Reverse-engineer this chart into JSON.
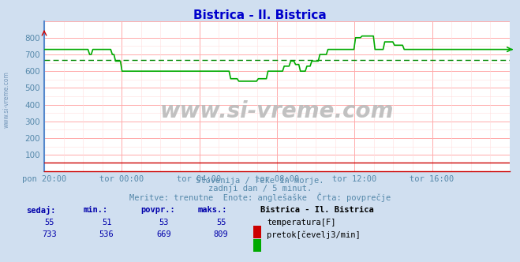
{
  "title": "Bistrica - Il. Bistrica",
  "title_color": "#0000cc",
  "bg_color": "#d0dff0",
  "plot_bg_color": "#ffffff",
  "grid_color_major": "#ffaaaa",
  "grid_color_minor": "#ffdddd",
  "x_labels": [
    "pon 20:00",
    "tor 00:00",
    "tor 04:00",
    "tor 08:00",
    "tor 12:00",
    "tor 16:00"
  ],
  "ylim": [
    0,
    900
  ],
  "yticks": [
    100,
    200,
    300,
    400,
    500,
    600,
    700,
    800
  ],
  "temp_color": "#cc0000",
  "flow_color": "#00aa00",
  "avg_color": "#008800",
  "temp_avg": 53,
  "flow_avg": 669,
  "flow_current": 733,
  "watermark": "www.si-vreme.com",
  "sub_text1": "Slovenija / reke in morje.",
  "sub_text2": "zadnji dan / 5 minut.",
  "sub_text3": "Meritve: trenutne  Enote: anglešaške  Črta: povprečje",
  "legend_title": "Bistrica - Il. Bistrica",
  "legend_items": [
    {
      "label": "temperatura[F]",
      "color": "#cc0000"
    },
    {
      "label": "pretok[čevelj3/min]",
      "color": "#00aa00"
    }
  ],
  "table_headers": [
    "sedaj:",
    "min.:",
    "povpr.:",
    "maks.:"
  ],
  "table_row1": [
    "55",
    "51",
    "53",
    "55"
  ],
  "table_row2": [
    "733",
    "536",
    "669",
    "809"
  ],
  "text_color": "#0000aa",
  "axis_label_color": "#5588aa",
  "border_color_left": "#5588cc",
  "border_color_bottom": "#cc0000"
}
